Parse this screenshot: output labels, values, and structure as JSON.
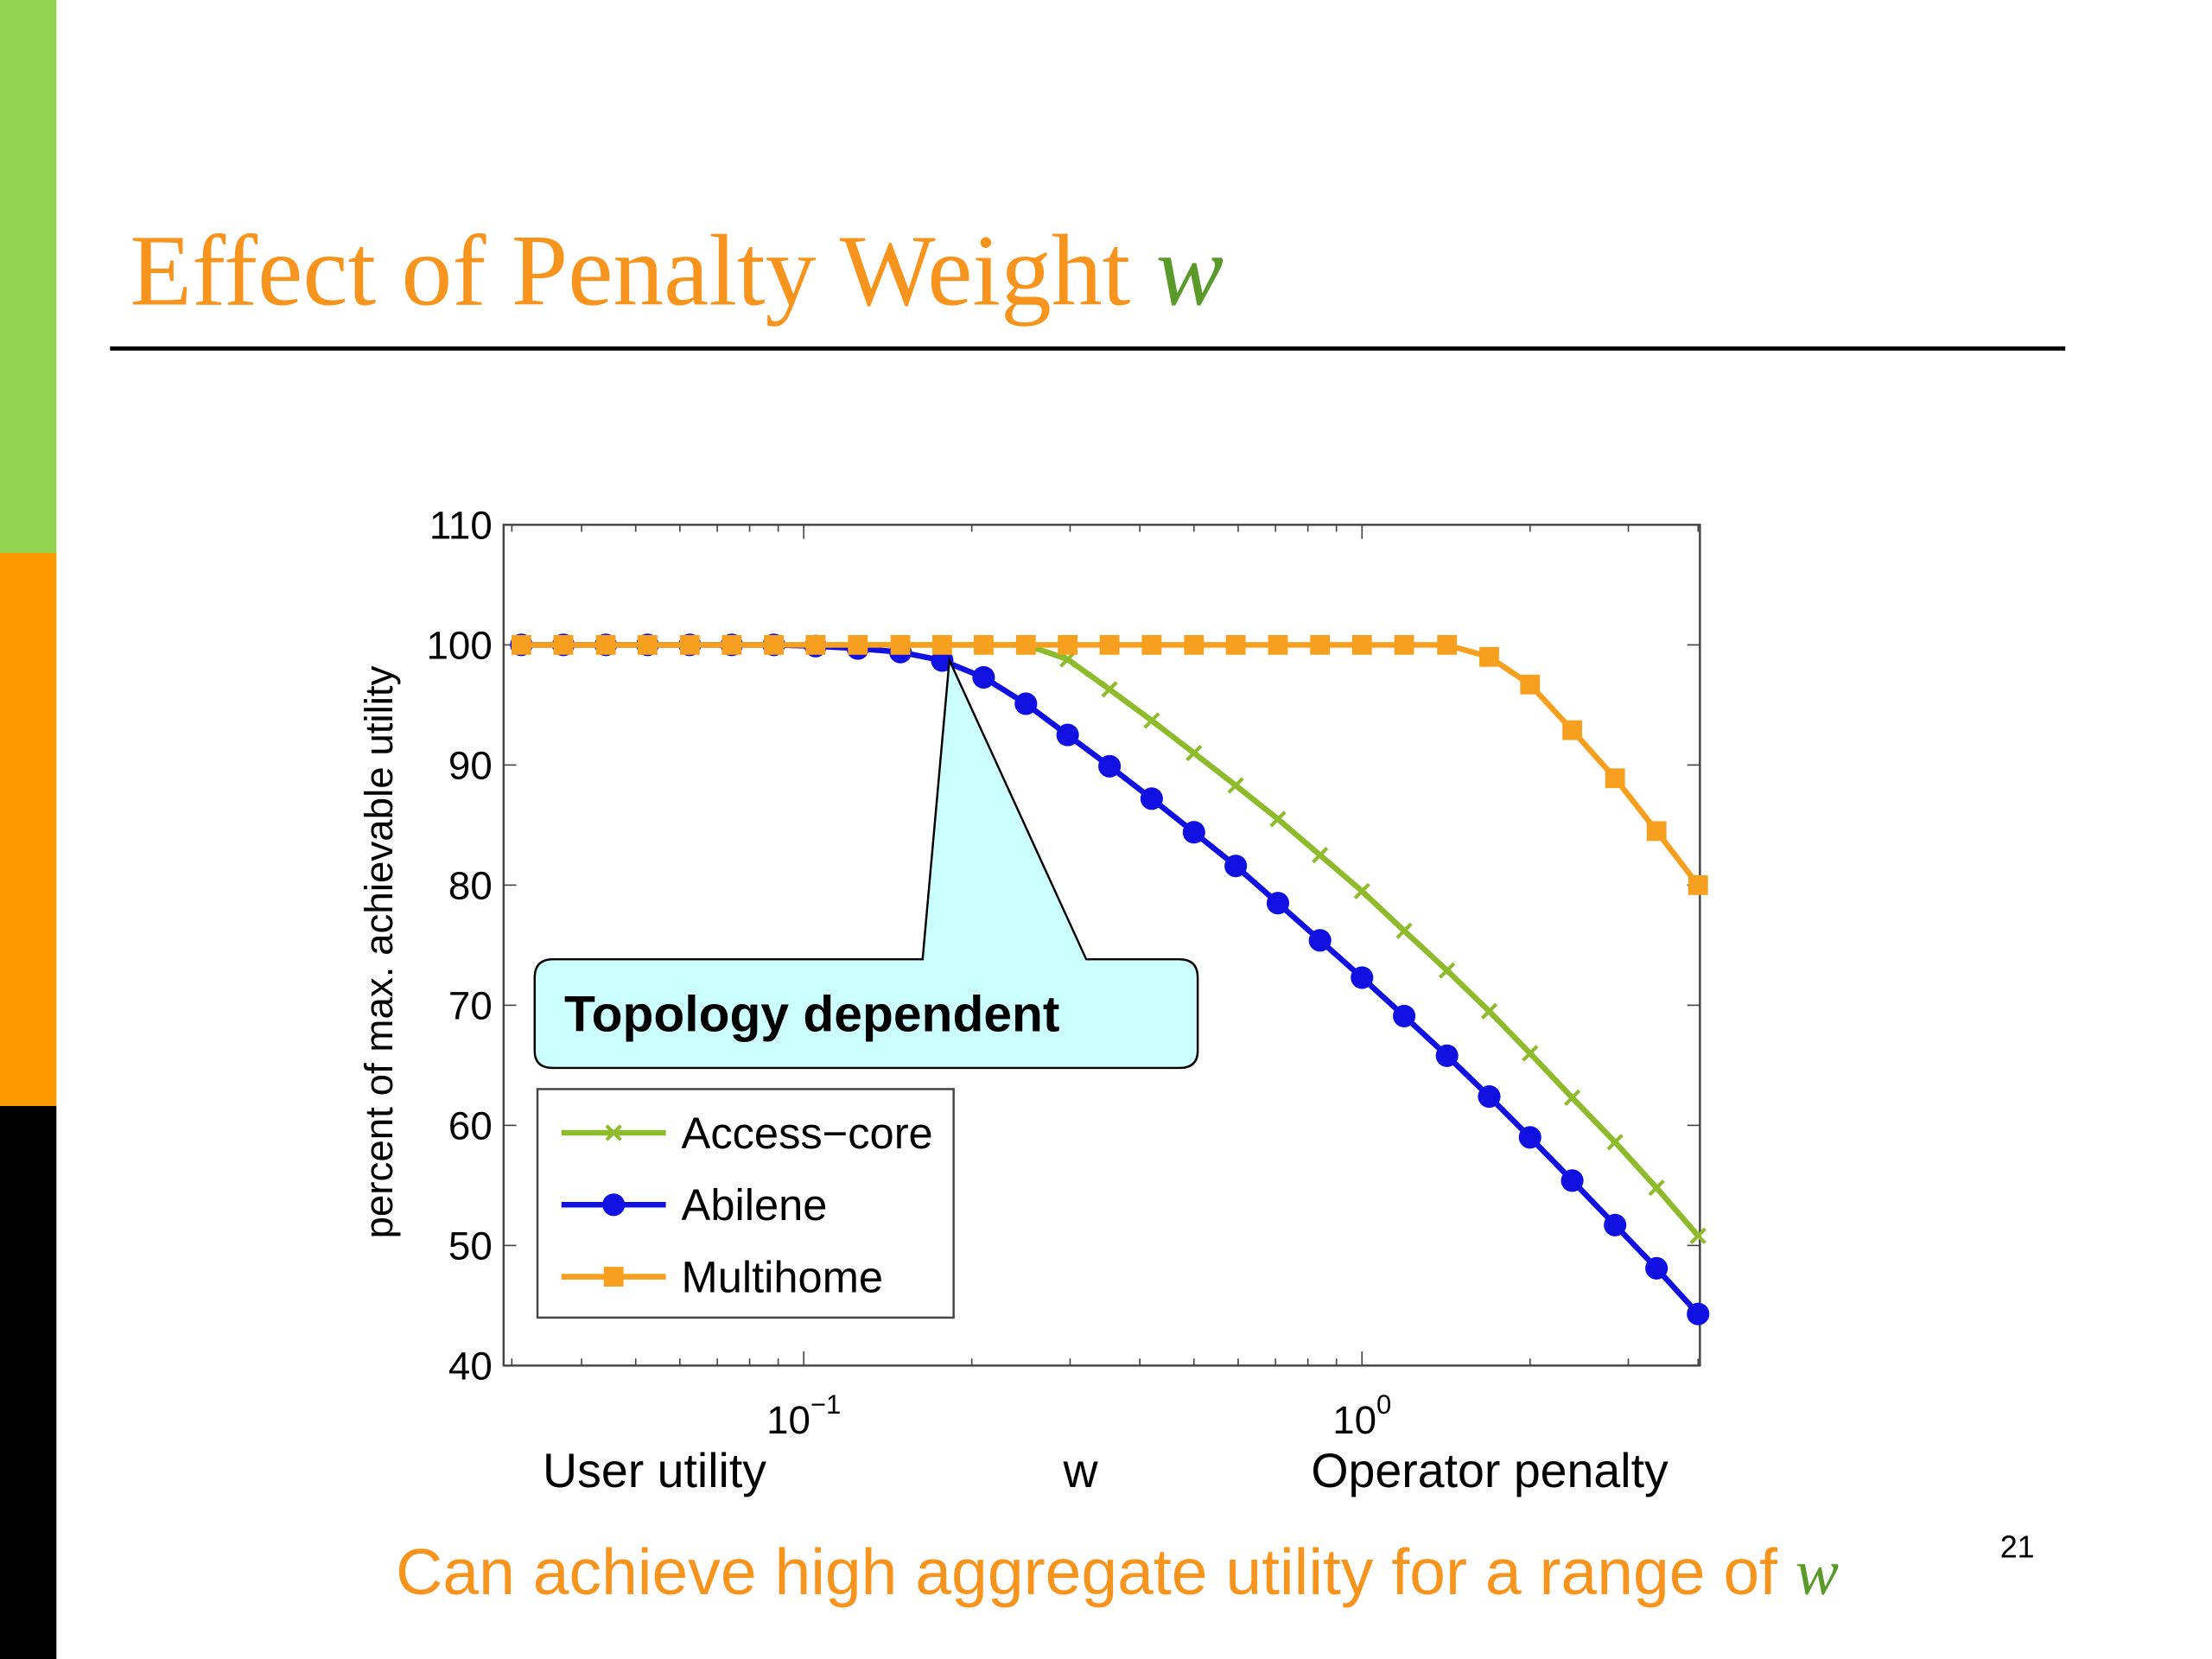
{
  "slide": {
    "title": "Effect of Penalty Weight",
    "title_var": "w",
    "caption": "Can achieve high aggregate utility for a range of",
    "caption_var": "w",
    "page_number": "21"
  },
  "chart_data": {
    "type": "line",
    "ylabel": "percent of max. achievable utility",
    "xlabel_left": "User utility",
    "xlabel": "w",
    "xlabel_right": "Operator penalty",
    "annotation": "Topology dependent",
    "xscale": "log",
    "xlim": [
      0.029,
      4.03
    ],
    "ylim": [
      40,
      110
    ],
    "yticks": [
      40,
      50,
      60,
      70,
      80,
      90,
      100,
      110
    ],
    "xticks": [
      {
        "value": 0.1,
        "label": "10−1"
      },
      {
        "value": 1,
        "label": "100"
      }
    ],
    "legend": "lower left",
    "x": [
      0.0312,
      0.0371,
      0.0442,
      0.0525,
      0.0625,
      0.0743,
      0.0884,
      0.105,
      0.125,
      0.149,
      0.177,
      0.21,
      0.25,
      0.297,
      0.353,
      0.42,
      0.5,
      0.594,
      0.707,
      0.841,
      1.0,
      1.19,
      1.42,
      1.69,
      2.0,
      2.38,
      2.84,
      3.37,
      4.0
    ],
    "series": [
      {
        "name": "Access−core",
        "color": "#8dbb2b",
        "marker": "x",
        "values": [
          100,
          100,
          100,
          100,
          100,
          100,
          100,
          100,
          100,
          100,
          100,
          100,
          100,
          98.8,
          96.3,
          93.7,
          91.0,
          88.3,
          85.5,
          82.5,
          79.5,
          76.2,
          72.9,
          69.5,
          66.0,
          62.3,
          58.6,
          54.8,
          50.8
        ]
      },
      {
        "name": "Abilene",
        "color": "#1010e0",
        "marker": "circle",
        "values": [
          100,
          100,
          100,
          100,
          100,
          100,
          100,
          99.9,
          99.7,
          99.4,
          98.7,
          97.3,
          95.1,
          92.5,
          89.9,
          87.2,
          84.4,
          81.6,
          78.5,
          75.4,
          72.3,
          69.1,
          65.8,
          62.4,
          59.0,
          55.4,
          51.7,
          48.1,
          44.3
        ]
      },
      {
        "name": "Multihome",
        "color": "#f7a020",
        "marker": "square",
        "values": [
          100,
          100,
          100,
          100,
          100,
          100,
          100,
          100,
          100,
          100,
          100,
          100,
          100,
          100,
          100,
          100,
          100,
          100,
          100,
          100,
          100,
          100,
          100,
          99.0,
          96.7,
          92.9,
          88.9,
          84.5,
          80.0
        ]
      }
    ]
  }
}
